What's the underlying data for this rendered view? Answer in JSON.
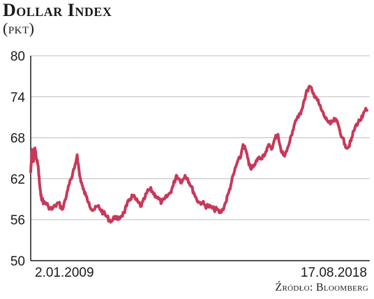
{
  "header": {
    "title": "Dollar Index",
    "subtitle": "(pkt)"
  },
  "footer": {
    "source": "Źródło: Bloomberg"
  },
  "colors": {
    "line": "#c8385a",
    "grid": "#bdbdbd",
    "axis": "#1a1a1a"
  },
  "chart_data": {
    "type": "line",
    "title": "Dollar Index",
    "subtitle": "(pkt)",
    "xlabel": "",
    "ylabel": "",
    "ylim": [
      50,
      80
    ],
    "yticks": [
      50,
      56,
      62,
      68,
      74,
      80
    ],
    "x_tick_labels": [
      "2.01.2009",
      "17.08.2018"
    ],
    "grid": true,
    "x": [
      2009.0,
      2009.04,
      2009.08,
      2009.12,
      2009.17,
      2009.21,
      2009.25,
      2009.29,
      2009.33,
      2009.37,
      2009.42,
      2009.5,
      2009.6,
      2009.7,
      2009.8,
      2009.9,
      2010.0,
      2010.08,
      2010.17,
      2010.25,
      2010.33,
      2010.4,
      2010.45,
      2010.5,
      2010.58,
      2010.67,
      2010.75,
      2010.83,
      2010.92,
      2011.0,
      2011.08,
      2011.17,
      2011.25,
      2011.33,
      2011.42,
      2011.5,
      2011.58,
      2011.67,
      2011.75,
      2011.83,
      2011.92,
      2012.0,
      2012.08,
      2012.17,
      2012.25,
      2012.33,
      2012.42,
      2012.5,
      2012.58,
      2012.67,
      2012.75,
      2012.83,
      2012.92,
      2013.0,
      2013.08,
      2013.17,
      2013.25,
      2013.33,
      2013.42,
      2013.5,
      2013.58,
      2013.67,
      2013.75,
      2013.83,
      2013.92,
      2014.0,
      2014.08,
      2014.17,
      2014.25,
      2014.33,
      2014.42,
      2014.5,
      2014.58,
      2014.67,
      2014.75,
      2014.83,
      2014.92,
      2015.0,
      2015.08,
      2015.17,
      2015.25,
      2015.33,
      2015.42,
      2015.5,
      2015.58,
      2015.67,
      2015.75,
      2015.83,
      2015.92,
      2016.0,
      2016.08,
      2016.17,
      2016.25,
      2016.33,
      2016.42,
      2016.5,
      2016.58,
      2016.67,
      2016.75,
      2016.83,
      2016.92,
      2017.0,
      2017.08,
      2017.17,
      2017.25,
      2017.33,
      2017.42,
      2017.5,
      2017.58,
      2017.67,
      2017.75,
      2017.83,
      2017.92,
      2018.0,
      2018.08,
      2018.17,
      2018.25,
      2018.33,
      2018.42,
      2018.5,
      2018.58,
      2018.63
    ],
    "series": [
      {
        "values": [
          63.0,
          66.3,
          64.5,
          66.5,
          64.8,
          64.0,
          61.5,
          59.5,
          59.0,
          58.5,
          58.5,
          58.0,
          57.5,
          58.0,
          58.5,
          57.5,
          59.0,
          61.0,
          62.0,
          63.5,
          65.5,
          62.5,
          61.5,
          60.5,
          59.5,
          58.5,
          57.5,
          57.5,
          58.0,
          57.5,
          57.0,
          56.5,
          56.0,
          55.8,
          56.5,
          56.0,
          56.5,
          57.0,
          58.0,
          59.0,
          59.5,
          59.0,
          58.5,
          58.0,
          59.0,
          60.0,
          60.5,
          60.0,
          59.5,
          59.0,
          58.5,
          59.0,
          59.5,
          60.0,
          61.0,
          62.5,
          62.0,
          61.5,
          62.5,
          62.0,
          61.0,
          60.0,
          59.0,
          58.5,
          58.5,
          58.0,
          58.0,
          57.8,
          57.5,
          57.5,
          57.0,
          57.5,
          58.5,
          60.0,
          61.5,
          63.0,
          64.5,
          65.0,
          67.0,
          66.0,
          64.0,
          63.5,
          64.0,
          65.0,
          65.0,
          65.5,
          66.0,
          67.0,
          66.5,
          68.0,
          68.5,
          66.0,
          65.5,
          66.0,
          67.5,
          69.0,
          70.5,
          71.0,
          72.0,
          73.5,
          75.0,
          75.5,
          74.5,
          74.0,
          73.0,
          72.0,
          71.0,
          70.5,
          70.0,
          70.5,
          70.5,
          69.5,
          68.0,
          67.0,
          66.5,
          67.5,
          69.0,
          70.0,
          70.5,
          71.0,
          72.0,
          72.0
        ]
      }
    ]
  }
}
